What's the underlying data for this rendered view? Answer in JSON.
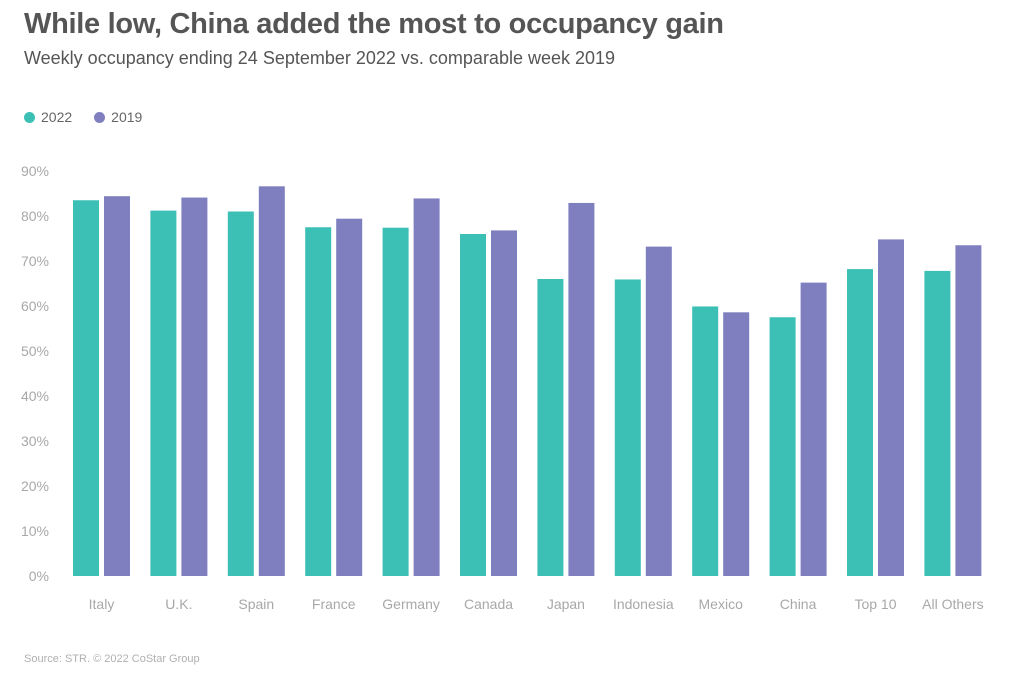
{
  "title": "While low, China added the most to occupancy gain",
  "subtitle": "Weekly occupancy ending 24 September 2022 vs. comparable week 2019",
  "source": "Source: STR. © 2022 CoStar Group",
  "colors": {
    "s2022": "#3cbfb5",
    "s2019": "#7f7fc0"
  },
  "chart_data": {
    "type": "bar",
    "title": "While low, China added the most to occupancy gain",
    "subtitle": "Weekly occupancy ending 24 September 2022 vs. comparable week 2019",
    "xlabel": "",
    "ylabel": "",
    "ylim": [
      0,
      90
    ],
    "yticks": [
      0,
      10,
      20,
      30,
      40,
      50,
      60,
      70,
      80,
      90
    ],
    "ytick_labels": [
      "0%",
      "10%",
      "20%",
      "30%",
      "40%",
      "50%",
      "60%",
      "70%",
      "80%",
      "90%"
    ],
    "grid": false,
    "legend_position": "top-left",
    "categories": [
      "Italy",
      "U.K.",
      "Spain",
      "France",
      "Germany",
      "Canada",
      "Japan",
      "Indonesia",
      "Mexico",
      "China",
      "Top 10",
      "All Others"
    ],
    "series": [
      {
        "name": "2022",
        "color": "#3cbfb5",
        "values": [
          83.5,
          81.2,
          81.0,
          77.5,
          77.4,
          76.0,
          66.0,
          65.9,
          59.9,
          57.5,
          68.2,
          67.8
        ]
      },
      {
        "name": "2019",
        "color": "#7f7fc0",
        "values": [
          84.4,
          84.1,
          86.6,
          79.4,
          83.9,
          76.8,
          82.9,
          73.2,
          58.6,
          65.2,
          74.8,
          73.5
        ]
      }
    ]
  }
}
